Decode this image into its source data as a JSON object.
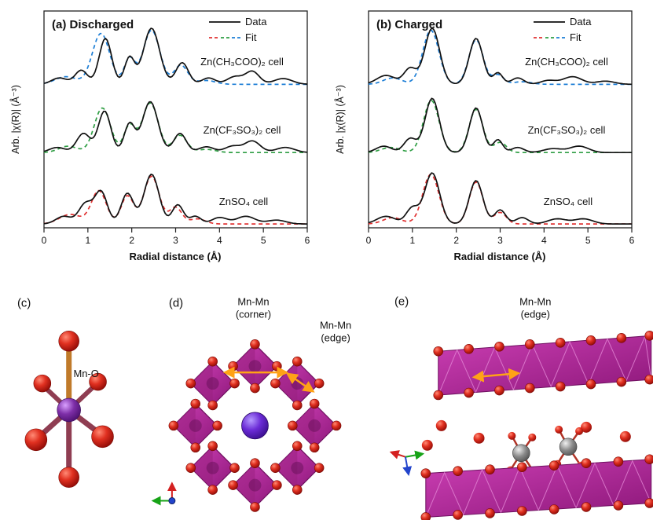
{
  "chart_data": [
    {
      "type": "line",
      "panel": "a",
      "panel_label": "(a) Discharged",
      "xlabel": "Radial distance (Å)",
      "ylabel": "Arb. |χ(R)| (Å⁻³)",
      "xlim": [
        0,
        6
      ],
      "xticks": [
        0,
        1,
        2,
        3,
        4,
        5,
        6
      ],
      "ylim": [
        0,
        3.4
      ],
      "grid": false,
      "legend_position": "top-right",
      "data_color": "#111111",
      "legend": [
        {
          "label": "Data",
          "style": "solid",
          "color": "#111111"
        },
        {
          "label": "Fit",
          "style": "dashed",
          "colors": [
            "#e03131",
            "#2f9e44",
            "#1c7ed6"
          ]
        }
      ],
      "curve_model": "y = offset + sum of a*exp(-((x-c)/s)^2) over peaks [c, a, s]; x in Å, y in arbitrary units",
      "traces": [
        {
          "label": "Zn(CH₃COO)₂ cell",
          "offset": 2.25,
          "fit_color": "#1c7ed6",
          "data_peaks": [
            [
              0.35,
              0.1,
              0.25
            ],
            [
              0.85,
              0.22,
              0.2
            ],
            [
              1.4,
              0.72,
              0.2
            ],
            [
              1.95,
              0.42,
              0.16
            ],
            [
              2.45,
              0.88,
              0.26
            ],
            [
              3.15,
              0.34,
              0.2
            ],
            [
              3.75,
              0.1,
              0.22
            ],
            [
              4.35,
              0.12,
              0.25
            ],
            [
              4.75,
              0.2,
              0.22
            ],
            [
              5.45,
              0.09,
              0.3
            ]
          ],
          "fit_peaks": [
            [
              0.5,
              0.12,
              0.35
            ],
            [
              1.3,
              0.8,
              0.28
            ],
            [
              1.95,
              0.4,
              0.17
            ],
            [
              2.45,
              0.85,
              0.27
            ],
            [
              3.12,
              0.3,
              0.22
            ],
            [
              3.7,
              0.06,
              0.3
            ]
          ]
        },
        {
          "label": "Zn(CF₃SO₃)₂ cell",
          "offset": 1.18,
          "fit_color": "#2f9e44",
          "data_peaks": [
            [
              0.3,
              0.08,
              0.25
            ],
            [
              0.9,
              0.3,
              0.22
            ],
            [
              1.38,
              0.65,
              0.2
            ],
            [
              1.95,
              0.45,
              0.17
            ],
            [
              2.42,
              0.8,
              0.25
            ],
            [
              3.1,
              0.3,
              0.2
            ],
            [
              3.7,
              0.09,
              0.25
            ],
            [
              4.3,
              0.1,
              0.25
            ],
            [
              4.75,
              0.18,
              0.25
            ],
            [
              5.5,
              0.08,
              0.3
            ]
          ],
          "fit_peaks": [
            [
              0.55,
              0.1,
              0.3
            ],
            [
              1.33,
              0.7,
              0.26
            ],
            [
              1.95,
              0.42,
              0.18
            ],
            [
              2.42,
              0.78,
              0.26
            ],
            [
              3.1,
              0.27,
              0.22
            ],
            [
              3.7,
              0.05,
              0.3
            ]
          ]
        },
        {
          "label": "ZnSO₄ cell",
          "offset": 0.06,
          "fit_color": "#e03131",
          "data_peaks": [
            [
              0.45,
              0.12,
              0.25
            ],
            [
              0.95,
              0.32,
              0.22
            ],
            [
              1.3,
              0.5,
              0.2
            ],
            [
              1.9,
              0.48,
              0.2
            ],
            [
              2.45,
              0.78,
              0.24
            ],
            [
              3.05,
              0.3,
              0.18
            ],
            [
              3.45,
              0.12,
              0.18
            ],
            [
              4.0,
              0.1,
              0.25
            ],
            [
              4.6,
              0.12,
              0.3
            ],
            [
              5.3,
              0.06,
              0.3
            ]
          ],
          "fit_peaks": [
            [
              0.6,
              0.15,
              0.35
            ],
            [
              1.25,
              0.52,
              0.24
            ],
            [
              1.9,
              0.44,
              0.2
            ],
            [
              2.45,
              0.75,
              0.25
            ],
            [
              3.0,
              0.26,
              0.2
            ],
            [
              3.5,
              0.08,
              0.25
            ]
          ]
        }
      ]
    },
    {
      "type": "line",
      "panel": "b",
      "panel_label": "(b) Charged",
      "xlabel": "Radial distance (Å)",
      "ylabel": "Arb. |χ(R)| (Å⁻³)",
      "xlim": [
        0,
        6
      ],
      "xticks": [
        0,
        1,
        2,
        3,
        4,
        5,
        6
      ],
      "ylim": [
        0,
        3.4
      ],
      "grid": false,
      "legend_position": "top-right",
      "data_color": "#111111",
      "legend": [
        {
          "label": "Data",
          "style": "solid",
          "color": "#111111"
        },
        {
          "label": "Fit",
          "style": "dashed",
          "colors": [
            "#e03131",
            "#2f9e44",
            "#1c7ed6"
          ]
        }
      ],
      "curve_model": "y = offset + sum of a*exp(-((x-c)/s)^2) over peaks [c, a, s]; x in Å, y in arbitrary units",
      "traces": [
        {
          "label": "Zn(CH₃COO)₂ cell",
          "offset": 2.25,
          "fit_color": "#1c7ed6",
          "data_peaks": [
            [
              0.4,
              0.14,
              0.3
            ],
            [
              0.95,
              0.25,
              0.2
            ],
            [
              1.45,
              0.88,
              0.24
            ],
            [
              2.45,
              0.72,
              0.22
            ],
            [
              2.95,
              0.18,
              0.15
            ],
            [
              3.4,
              0.1,
              0.2
            ],
            [
              4.1,
              0.06,
              0.25
            ],
            [
              4.65,
              0.12,
              0.3
            ],
            [
              5.4,
              0.05,
              0.3
            ]
          ],
          "fit_peaks": [
            [
              0.55,
              0.1,
              0.3
            ],
            [
              1.42,
              0.85,
              0.26
            ],
            [
              2.45,
              0.7,
              0.23
            ],
            [
              2.95,
              0.15,
              0.18
            ],
            [
              3.5,
              0.04,
              0.3
            ]
          ]
        },
        {
          "label": "Zn(CF₃SO₃)₂ cell",
          "offset": 1.18,
          "fit_color": "#2f9e44",
          "data_peaks": [
            [
              0.35,
              0.1,
              0.25
            ],
            [
              0.95,
              0.22,
              0.2
            ],
            [
              1.45,
              0.85,
              0.23
            ],
            [
              2.45,
              0.7,
              0.21
            ],
            [
              2.95,
              0.2,
              0.15
            ],
            [
              3.4,
              0.08,
              0.2
            ],
            [
              4.2,
              0.06,
              0.3
            ],
            [
              4.8,
              0.1,
              0.3
            ]
          ],
          "fit_peaks": [
            [
              0.5,
              0.08,
              0.3
            ],
            [
              1.43,
              0.82,
              0.25
            ],
            [
              2.45,
              0.68,
              0.22
            ],
            [
              3.0,
              0.16,
              0.2
            ]
          ]
        },
        {
          "label": "ZnSO₄ cell",
          "offset": 0.06,
          "fit_color": "#e03131",
          "data_peaks": [
            [
              0.4,
              0.12,
              0.3
            ],
            [
              1.0,
              0.25,
              0.2
            ],
            [
              1.45,
              0.8,
              0.24
            ],
            [
              2.45,
              0.68,
              0.22
            ],
            [
              3.0,
              0.22,
              0.18
            ],
            [
              3.5,
              0.1,
              0.2
            ],
            [
              4.3,
              0.08,
              0.3
            ],
            [
              4.9,
              0.08,
              0.3
            ]
          ],
          "fit_peaks": [
            [
              0.55,
              0.1,
              0.3
            ],
            [
              1.42,
              0.78,
              0.26
            ],
            [
              2.45,
              0.66,
              0.22
            ],
            [
              3.0,
              0.18,
              0.2
            ]
          ]
        }
      ]
    }
  ],
  "structures": {
    "c": {
      "label": "(c)",
      "bond_label": "Mn-O",
      "colors": {
        "manganese": "#7e2fa8",
        "oxygen": "#cf1b0e",
        "bond": "#8f3d52"
      }
    },
    "d": {
      "label": "(d)",
      "corner_label_1": "Mn-Mn",
      "corner_label_2": "(corner)",
      "edge_label_1": "Mn-Mn",
      "edge_label_2": "(edge)",
      "colors": {
        "octahedra": "#b12a9b",
        "zinc": "#6b2bd6",
        "oxygen": "#cf1b0e",
        "arrow": "#ffa216"
      }
    },
    "e": {
      "label": "(e)",
      "edge_label_1": "Mn-Mn",
      "edge_label_2": "(edge)",
      "colors": {
        "octahedra": "#b12a9b",
        "zinc_site": "#9a9a9a",
        "oxygen": "#cf1b0e",
        "arrow": "#ffa216"
      }
    }
  }
}
